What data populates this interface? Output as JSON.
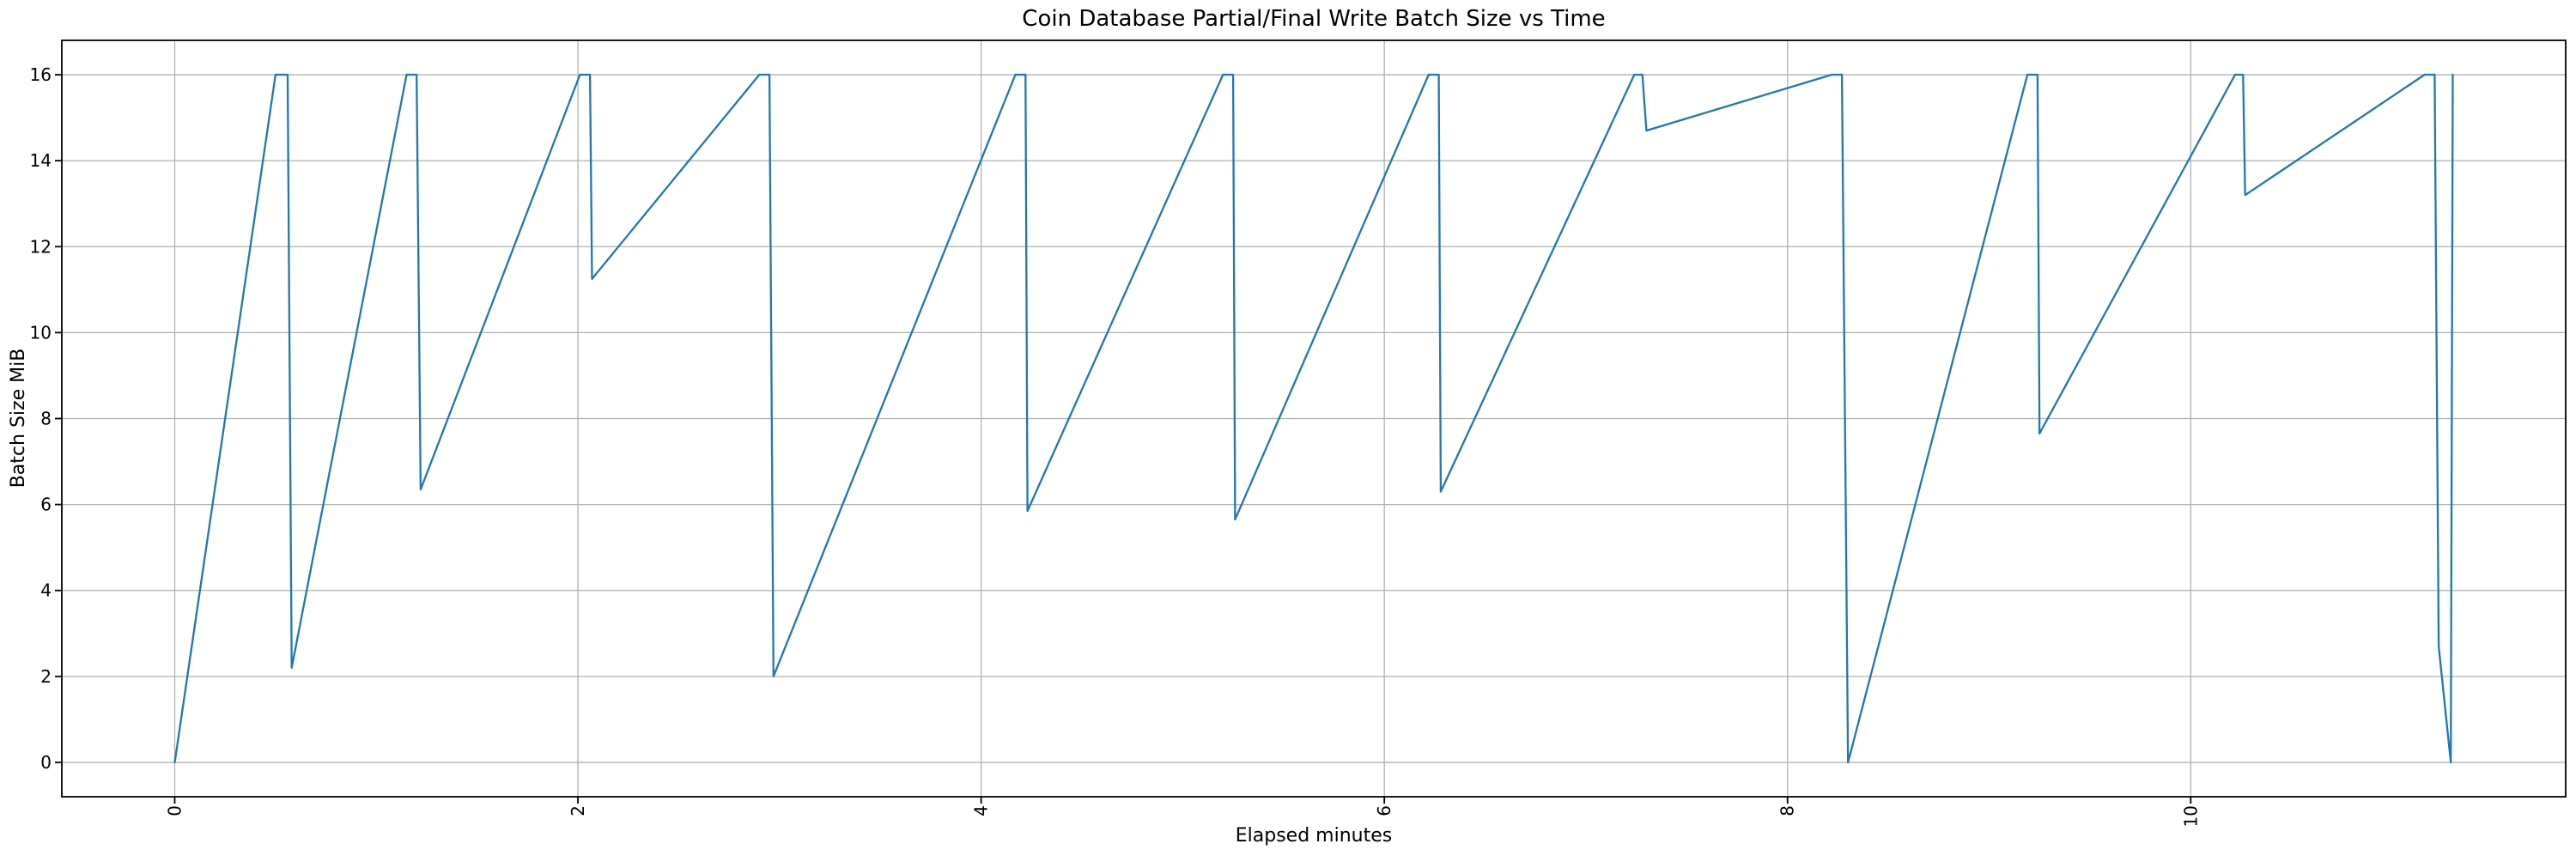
{
  "chart_data": {
    "type": "line",
    "title": "Coin Database Partial/Final Write Batch Size vs Time",
    "xlabel": "Elapsed minutes",
    "ylabel": "Batch Size MiB",
    "xlim": [
      -0.56,
      11.86
    ],
    "ylim": [
      -0.8,
      16.8
    ],
    "x_ticks": [
      0,
      2,
      4,
      6,
      8,
      10
    ],
    "y_ticks": [
      0,
      2,
      4,
      6,
      8,
      10,
      12,
      14,
      16
    ],
    "x_tick_rotation": 90,
    "grid": true,
    "grid_color": "#b0b0b0",
    "spine_color": "#000000",
    "legend": false,
    "series": [
      {
        "name": "batch-size",
        "color": "#1f77b4",
        "x": [
          0.0,
          0.5,
          0.56,
          0.58,
          1.15,
          1.2,
          1.22,
          2.01,
          2.06,
          2.07,
          2.9,
          2.95,
          2.97,
          4.17,
          4.22,
          4.23,
          5.2,
          5.25,
          5.26,
          6.22,
          6.27,
          6.28,
          7.24,
          7.28,
          7.3,
          8.22,
          8.27,
          8.3,
          9.19,
          9.24,
          9.25,
          10.22,
          10.26,
          10.27,
          11.16,
          11.21,
          11.23,
          11.29,
          11.3
        ],
        "y": [
          0.0,
          16,
          16,
          2.2,
          16,
          16,
          6.35,
          16,
          16,
          11.25,
          16,
          16,
          2.0,
          16,
          16,
          5.85,
          16,
          16,
          5.65,
          16,
          16,
          6.3,
          16,
          16,
          14.7,
          16,
          16,
          0.0,
          16,
          16,
          7.65,
          16,
          16,
          13.2,
          16,
          16,
          2.7,
          0.0,
          16
        ]
      }
    ]
  }
}
